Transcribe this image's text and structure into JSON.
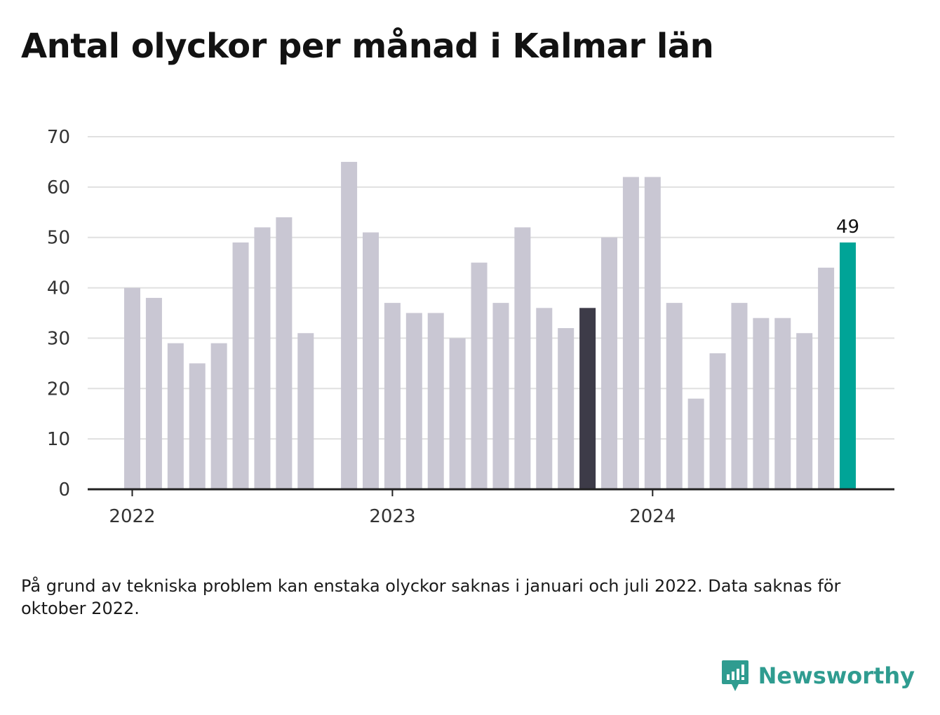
{
  "title": "Antal olyckor per månad i Kalmar län",
  "footnote": "På grund av tekniska problem kan enstaka olyckor saknas i januari och juli 2022. Data saknas för oktober 2022.",
  "brand": {
    "name": "Newsworthy",
    "icon": "newsworthy-logo-icon",
    "color": "#2f9c90"
  },
  "colors": {
    "default_bar": "#c9c7d3",
    "highlight_prev": "#3d3b48",
    "highlight_latest": "#00a497",
    "grid": "#e0e0e0",
    "axis": "#222222"
  },
  "chart_data": {
    "type": "bar",
    "x": [
      "2022-01",
      "2022-02",
      "2022-03",
      "2022-04",
      "2022-05",
      "2022-06",
      "2022-07",
      "2022-08",
      "2022-09",
      "2022-10",
      "2022-11",
      "2022-12",
      "2023-01",
      "2023-02",
      "2023-03",
      "2023-04",
      "2023-05",
      "2023-06",
      "2023-07",
      "2023-08",
      "2023-09",
      "2023-10",
      "2023-11",
      "2023-12",
      "2024-01",
      "2024-02",
      "2024-03",
      "2024-04",
      "2024-05",
      "2024-06",
      "2024-07",
      "2024-08",
      "2024-09",
      "2024-10"
    ],
    "values": [
      40,
      38,
      29,
      25,
      29,
      49,
      52,
      54,
      31,
      null,
      65,
      51,
      37,
      35,
      35,
      30,
      45,
      37,
      52,
      36,
      32,
      36,
      50,
      62,
      62,
      37,
      18,
      27,
      37,
      34,
      34,
      31,
      44,
      49
    ],
    "highlight": {
      "2023-10": "highlight_prev",
      "2024-10": "highlight_latest"
    },
    "value_labels": {
      "2024-10": "49"
    },
    "x_ticks": [
      {
        "x": "2022-01",
        "label": "2022"
      },
      {
        "x": "2023-01",
        "label": "2023"
      },
      {
        "x": "2024-01",
        "label": "2024"
      }
    ],
    "y_ticks": [
      0,
      10,
      20,
      30,
      40,
      50,
      60,
      70
    ],
    "ylim": [
      0,
      70
    ],
    "grid": true,
    "title": "",
    "xlabel": "",
    "ylabel": ""
  }
}
